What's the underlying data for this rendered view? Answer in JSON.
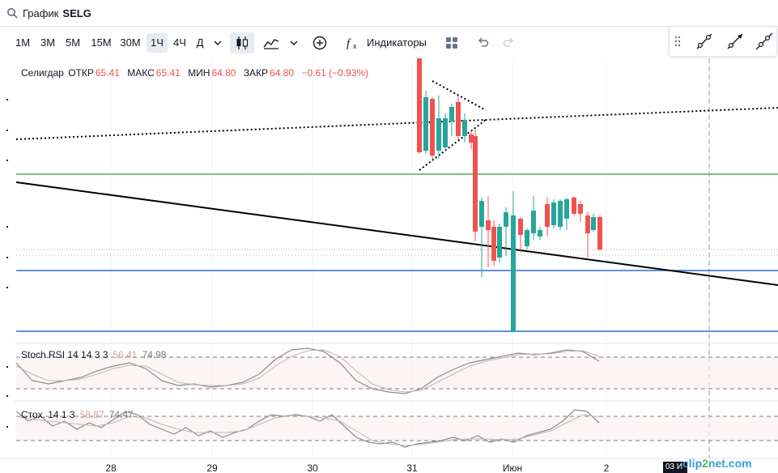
{
  "title": {
    "label": "График",
    "symbol": "SELG"
  },
  "toolbar": {
    "timeframes": [
      {
        "label": "1М",
        "active": false
      },
      {
        "label": "3М",
        "active": false
      },
      {
        "label": "5М",
        "active": false
      },
      {
        "label": "15М",
        "active": false
      },
      {
        "label": "30М",
        "active": false
      },
      {
        "label": "1Ч",
        "active": true
      },
      {
        "label": "4Ч",
        "active": false
      },
      {
        "label": "Д",
        "active": false
      }
    ],
    "indicators_label": "Индикаторы",
    "icons": [
      "chevron-down-icon",
      "candles-icon",
      "area-chart-icon",
      "chevron-down-icon",
      "add-circle-icon",
      "fx-icon",
      "layout-grid-icon",
      "undo-icon",
      "redo-icon"
    ]
  },
  "drawing_tools": [
    "grip-icon",
    "trend-line-icon",
    "ray-icon",
    "extended-line-icon"
  ],
  "legend": {
    "name": "Селигдар",
    "open_label": "ОТКР",
    "open": "65.41",
    "high_label": "МАКС",
    "high": "65.41",
    "low_label": "МИН",
    "low": "64.80",
    "close_label": "ЗАКР",
    "close": "64.80",
    "change": "−0.61 (−0.93%)",
    "color_down": "#ef5350"
  },
  "indicators": [
    {
      "name": "Stoch RSI 14 14 3 3",
      "value1": "56.41",
      "value2": "74.98"
    },
    {
      "name": "Стох. 14 1 3",
      "value1": "58.87",
      "value2": "74.47"
    }
  ],
  "x_axis": [
    "28",
    "29",
    "30",
    "31",
    "Июн",
    "2"
  ],
  "cursor_label": "03 И",
  "watermark": {
    "part1": "clip",
    "part2": "2",
    "part3": "net.com"
  },
  "colors": {
    "up": "#26a69a",
    "down": "#ef5350",
    "green_line": "#4caf50",
    "blue_line": "#2f6fc9"
  }
}
